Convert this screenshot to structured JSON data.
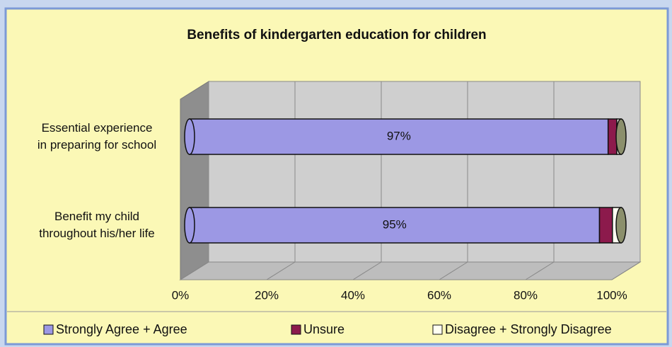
{
  "chart_data": {
    "type": "stacked_bar_horizontal",
    "title": "Benefits of kindergarten education for children",
    "categories": [
      "Essential experience\nin preparing for school",
      "Benefit my child\nthroughout his/her life"
    ],
    "series": [
      {
        "name": "Strongly Agree + Agree",
        "color": "#9c98e4",
        "values": [
          97,
          95
        ],
        "value_labels": [
          "97%",
          "95%"
        ]
      },
      {
        "name": "Unsure",
        "color": "#8c1a4c",
        "values": [
          2,
          3
        ]
      },
      {
        "name": "Disagree + Strongly Disagree",
        "color": "#fffff2",
        "values": [
          1,
          2
        ]
      }
    ],
    "xlim": [
      0,
      100
    ],
    "xticks": [
      {
        "value": 0,
        "label": "0%"
      },
      {
        "value": 20,
        "label": "20%"
      },
      {
        "value": 40,
        "label": "40%"
      },
      {
        "value": 60,
        "label": "60%"
      },
      {
        "value": 80,
        "label": "80%"
      },
      {
        "value": 100,
        "label": "100%"
      }
    ],
    "grid": true
  }
}
